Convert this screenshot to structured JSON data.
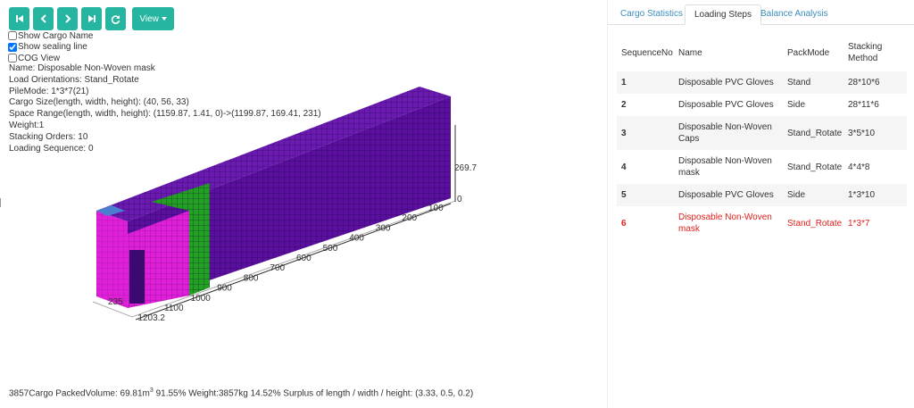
{
  "toolbar": {
    "view_button": "View"
  },
  "options": [
    {
      "label": "Show Cargo Name",
      "checked": false
    },
    {
      "label": "Show sealing line",
      "checked": true
    },
    {
      "label": "COG View",
      "checked": false
    }
  ],
  "info": [
    "Name: Disposable Non-Woven mask",
    "Load Orientations: Stand_Rotate",
    "PileMode: 1*3*7(21)",
    "Cargo Size(length, width, height): (40, 56, 33)",
    "Space Range(length, width, height): (1159.87, 1.41, 0)->(1199.87, 169.41, 231)",
    "Weight:1",
    "Stacking Orders: 10",
    "Loading Sequence: 0"
  ],
  "scene": {
    "height_labels": [
      "269.7",
      "0"
    ],
    "length_labels": [
      "100",
      "200",
      "300",
      "400",
      "500",
      "600",
      "700",
      "800",
      "900",
      "1000",
      "1100",
      "1203.2"
    ],
    "width_label": "235"
  },
  "footer": {
    "prefix": "3857Cargo PackedVolume: 69.81m",
    "sup": "3",
    "suffix": " 91.55% Weight:3857kg 14.52% Surplus of length / width / height: (3.33, 0.5, 0.2)"
  },
  "tabs": {
    "items": [
      "Cargo Statistics",
      "Loading Steps",
      "Balance Analysis"
    ],
    "active": 1
  },
  "table": {
    "headers": [
      "SequenceNo",
      "Name",
      "PackMode",
      "Stacking Method"
    ],
    "rows": [
      [
        "1",
        "Disposable PVC Gloves",
        "Stand",
        "28*10*6"
      ],
      [
        "2",
        "Disposable PVC Gloves",
        "Side",
        "28*11*6"
      ],
      [
        "3",
        "Disposable Non-Woven Caps",
        "Stand_Rotate",
        "3*5*10"
      ],
      [
        "4",
        "Disposable Non-Woven mask",
        "Stand_Rotate",
        "4*4*8"
      ],
      [
        "5",
        "Disposable PVC Gloves",
        "Side",
        "1*3*10"
      ],
      [
        "6",
        "Disposable Non-Woven mask",
        "Stand_Rotate",
        "1*3*7"
      ]
    ],
    "highlighted_row": 5
  }
}
